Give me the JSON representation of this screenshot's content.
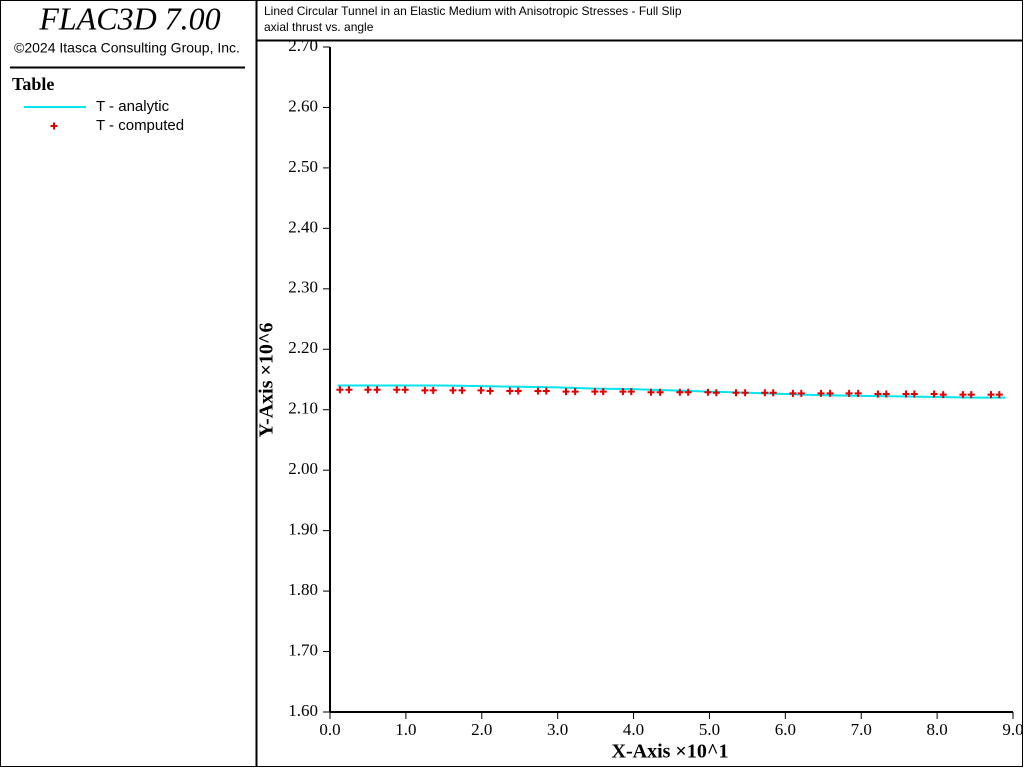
{
  "header": {
    "app": "FLAC3D 7.00",
    "copyright": "©2024 Itasca Consulting Group, Inc."
  },
  "chart_data": {
    "type": "line",
    "title": "Lined Circular Tunnel in an Elastic Medium with Anisotropic Stresses - Full Slip",
    "subtitle": "axial thrust vs. angle",
    "legend_title": "Table",
    "x_label": "X-Axis ×10^1",
    "y_label": "Y-Axis ×10^6",
    "xlim": [
      0,
      9
    ],
    "ylim": [
      1.6,
      2.7
    ],
    "xticks": [
      {
        "value": 0,
        "label": "0.0"
      },
      {
        "value": 1,
        "label": "1.0"
      },
      {
        "value": 2,
        "label": "2.0"
      },
      {
        "value": 3,
        "label": "3.0"
      },
      {
        "value": 4,
        "label": "4.0"
      },
      {
        "value": 5,
        "label": "5.0"
      },
      {
        "value": 6,
        "label": "6.0"
      },
      {
        "value": 7,
        "label": "7.0"
      },
      {
        "value": 8,
        "label": "8.0"
      },
      {
        "value": 9,
        "label": "9.0"
      }
    ],
    "yticks": [
      {
        "value": 1.6,
        "label": "1.60"
      },
      {
        "value": 1.7,
        "label": "1.70"
      },
      {
        "value": 1.8,
        "label": "1.80"
      },
      {
        "value": 1.9,
        "label": "1.90"
      },
      {
        "value": 2.0,
        "label": "2.00"
      },
      {
        "value": 2.1,
        "label": "2.10"
      },
      {
        "value": 2.2,
        "label": "2.20"
      },
      {
        "value": 2.3,
        "label": "2.30"
      },
      {
        "value": 2.4,
        "label": "2.40"
      },
      {
        "value": 2.5,
        "label": "2.50"
      },
      {
        "value": 2.6,
        "label": "2.60"
      },
      {
        "value": 2.7,
        "label": "2.70"
      }
    ],
    "series": [
      {
        "name": "T - analytic",
        "color": "#00e5ee",
        "style": "line",
        "x": [
          0.1,
          0.5,
          1,
          1.5,
          2,
          2.5,
          3,
          3.5,
          4,
          4.5,
          5,
          5.5,
          6,
          6.5,
          7,
          7.5,
          8,
          8.5,
          8.9
        ],
        "values": [
          2.14,
          2.14,
          2.14,
          2.14,
          2.139,
          2.138,
          2.137,
          2.135,
          2.134,
          2.132,
          2.13,
          2.128,
          2.126,
          2.124,
          2.123,
          2.122,
          2.121,
          2.12,
          2.12
        ]
      },
      {
        "name": "T - computed",
        "color": "#e00000",
        "style": "plus",
        "x": [
          0.13,
          0.25,
          0.5,
          0.62,
          0.88,
          0.99,
          1.25,
          1.36,
          1.62,
          1.74,
          1.99,
          2.11,
          2.37,
          2.48,
          2.74,
          2.85,
          3.11,
          3.23,
          3.49,
          3.6,
          3.86,
          3.97,
          4.23,
          4.35,
          4.61,
          4.72,
          4.98,
          5.09,
          5.35,
          5.47,
          5.73,
          5.84,
          6.1,
          6.21,
          6.47,
          6.59,
          6.84,
          6.96,
          7.22,
          7.33,
          7.59,
          7.7,
          7.96,
          8.08,
          8.34,
          8.45,
          8.71,
          8.82
        ],
        "values": [
          2.133,
          2.133,
          2.133,
          2.133,
          2.133,
          2.133,
          2.132,
          2.132,
          2.132,
          2.132,
          2.132,
          2.131,
          2.131,
          2.131,
          2.131,
          2.131,
          2.13,
          2.13,
          2.13,
          2.13,
          2.13,
          2.13,
          2.129,
          2.129,
          2.129,
          2.129,
          2.129,
          2.128,
          2.128,
          2.128,
          2.128,
          2.128,
          2.127,
          2.127,
          2.127,
          2.127,
          2.127,
          2.127,
          2.126,
          2.126,
          2.126,
          2.126,
          2.126,
          2.125,
          2.125,
          2.125,
          2.125,
          2.125
        ]
      }
    ]
  }
}
